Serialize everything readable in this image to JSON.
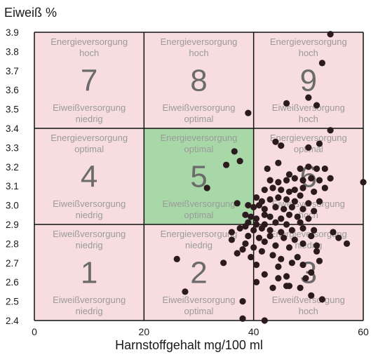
{
  "chart_data": {
    "type": "scatter",
    "ylabel": "Eiweiß %",
    "xlabel": "Harnstoffgehalt mg/100 ml",
    "xlim": [
      0,
      60
    ],
    "ylim": [
      2.4,
      3.9
    ],
    "x_ticks": [
      "0",
      "20",
      "40",
      "60"
    ],
    "y_ticks": [
      "2.4",
      "2.5",
      "2.6",
      "2.7",
      "2.8",
      "2.9",
      "3.0",
      "3.1",
      "3.2",
      "3.3",
      "3.4",
      "3.5",
      "3.6",
      "3.7",
      "3.8",
      "3.9"
    ],
    "x_bounds": [
      0,
      20,
      40,
      60
    ],
    "y_bounds": [
      2.4,
      2.9,
      3.4,
      3.9
    ],
    "colors": {
      "zone_fill": "#f7dde0",
      "optimal_fill": "#a8d8a8",
      "zone_label": "#9a9a9a",
      "zone_number": "#6b6b6b",
      "point": "#2b1a1e",
      "grid": "#111111"
    },
    "zones": [
      {
        "number": "1",
        "col": 0,
        "row": 0,
        "top1": "Eiweißversorgung",
        "top2": "niedrig",
        "bottom1": "Eiweißversorgung",
        "bottom2": "niedrig"
      },
      {
        "number": "2",
        "col": 1,
        "row": 0,
        "top1": "Energieversorgung",
        "top2": "niedrig",
        "bottom1": "Eiweißversorgung",
        "bottom2": "optimal"
      },
      {
        "number": "3",
        "col": 2,
        "row": 0,
        "top1": "Energieversorgung",
        "top2": "niedrig",
        "bottom1": "Eiweißversorgung",
        "bottom2": "hoch"
      },
      {
        "number": "4",
        "col": 0,
        "row": 1,
        "top1": "Energieversorgung",
        "top2": "optimal",
        "bottom1": "Eiweißversorgung",
        "bottom2": "niedrig"
      },
      {
        "number": "5",
        "col": 1,
        "row": 1,
        "top1": "Energieversorgung",
        "top2": "optimal",
        "bottom1": "Eiweißversorgung",
        "bottom2": "optimal",
        "highlight": true
      },
      {
        "number": "6",
        "col": 2,
        "row": 1,
        "top1": "Energieversorgung",
        "top2": "optimal",
        "bottom1": "Eiweißversorgung",
        "bottom2": "hoch"
      },
      {
        "number": "7",
        "col": 0,
        "row": 2,
        "top1": "Energieversorgung",
        "top2": "hoch",
        "bottom1": "Eiweißversorgung",
        "bottom2": "niedrig"
      },
      {
        "number": "8",
        "col": 1,
        "row": 2,
        "top1": "Energieversorgung",
        "top2": "hoch",
        "bottom1": "Eiweißversorgung",
        "bottom2": "optimal"
      },
      {
        "number": "9",
        "col": 2,
        "row": 2,
        "top1": "Energieversorgung",
        "top2": "hoch",
        "bottom1": "Eiweißversorgung",
        "bottom2": "hoch"
      }
    ],
    "points": [
      [
        54,
        3.89
      ],
      [
        52.5,
        3.74
      ],
      [
        51.5,
        3.52
      ],
      [
        50,
        3.56
      ],
      [
        46,
        3.53
      ],
      [
        39,
        3.48
      ],
      [
        54,
        3.39
      ],
      [
        37.5,
        3.23
      ],
      [
        36.5,
        3.28
      ],
      [
        35,
        3.21
      ],
      [
        31.5,
        3.09
      ],
      [
        37,
        3.01
      ],
      [
        44,
        3.33
      ],
      [
        45,
        3.31
      ],
      [
        50,
        3.3
      ],
      [
        52,
        3.32
      ],
      [
        42.5,
        3.19
      ],
      [
        44.5,
        3.22
      ],
      [
        46.5,
        3.16
      ],
      [
        48.5,
        3.19
      ],
      [
        50,
        3.2
      ],
      [
        51.5,
        3.19
      ],
      [
        53,
        3.19
      ],
      [
        43,
        3.13
      ],
      [
        44.5,
        3.12
      ],
      [
        46,
        3.13
      ],
      [
        47.5,
        3.14
      ],
      [
        49,
        3.13
      ],
      [
        50.5,
        3.14
      ],
      [
        52,
        3.13
      ],
      [
        54,
        3.14
      ],
      [
        60,
        3.12
      ],
      [
        42,
        3.08
      ],
      [
        43.5,
        3.09
      ],
      [
        45,
        3.08
      ],
      [
        46.5,
        3.07
      ],
      [
        47.5,
        3.08
      ],
      [
        49,
        3.09
      ],
      [
        51,
        3.07
      ],
      [
        53,
        3.09
      ],
      [
        40.5,
        3.04
      ],
      [
        41.5,
        3.02
      ],
      [
        43,
        3.03
      ],
      [
        44.5,
        3.04
      ],
      [
        46,
        3.03
      ],
      [
        47.5,
        3.02
      ],
      [
        48.5,
        3.05
      ],
      [
        50,
        3.01
      ],
      [
        52,
        3.02
      ],
      [
        39,
        3.0
      ],
      [
        40,
        2.99
      ],
      [
        41,
        3.0
      ],
      [
        42,
        2.98
      ],
      [
        44,
        2.99
      ],
      [
        45.5,
        2.98
      ],
      [
        47,
        2.99
      ],
      [
        49,
        2.98
      ],
      [
        51,
        2.97
      ],
      [
        38.5,
        2.95
      ],
      [
        39.5,
        2.94
      ],
      [
        40.5,
        2.93
      ],
      [
        42,
        2.95
      ],
      [
        43,
        2.94
      ],
      [
        45,
        2.93
      ],
      [
        46.5,
        2.95
      ],
      [
        48,
        2.94
      ],
      [
        50,
        2.93
      ],
      [
        39,
        2.91
      ],
      [
        40.5,
        2.9
      ],
      [
        42,
        2.9
      ],
      [
        44,
        2.91
      ],
      [
        46,
        2.9
      ],
      [
        48.5,
        2.91
      ],
      [
        37.5,
        2.88
      ],
      [
        38.5,
        2.89
      ],
      [
        40,
        2.87
      ],
      [
        41.5,
        2.88
      ],
      [
        43,
        2.87
      ],
      [
        45,
        2.86
      ],
      [
        47,
        2.87
      ],
      [
        49,
        2.88
      ],
      [
        51,
        2.87
      ],
      [
        36,
        2.86
      ],
      [
        39,
        2.84
      ],
      [
        41,
        2.83
      ],
      [
        43,
        2.84
      ],
      [
        45.5,
        2.83
      ],
      [
        47.5,
        2.82
      ],
      [
        50.5,
        2.84
      ],
      [
        54.5,
        2.86
      ],
      [
        55.5,
        2.83
      ],
      [
        36,
        2.82
      ],
      [
        38.5,
        2.8
      ],
      [
        40,
        2.78
      ],
      [
        42,
        2.81
      ],
      [
        44,
        2.79
      ],
      [
        46.5,
        2.78
      ],
      [
        49,
        2.8
      ],
      [
        51.5,
        2.79
      ],
      [
        57,
        2.8
      ],
      [
        37,
        2.75
      ],
      [
        38,
        2.77
      ],
      [
        39.5,
        2.73
      ],
      [
        41.5,
        2.76
      ],
      [
        43.5,
        2.74
      ],
      [
        45,
        2.72
      ],
      [
        48,
        2.73
      ],
      [
        51.5,
        2.76
      ],
      [
        26,
        2.72
      ],
      [
        34.5,
        2.7
      ],
      [
        40.5,
        2.69
      ],
      [
        44.5,
        2.68
      ],
      [
        47,
        2.7
      ],
      [
        49,
        2.69
      ],
      [
        52,
        2.71
      ],
      [
        42,
        2.64
      ],
      [
        46,
        2.63
      ],
      [
        50.5,
        2.65
      ],
      [
        40.5,
        2.6
      ],
      [
        44.5,
        2.62
      ],
      [
        46.5,
        2.58
      ],
      [
        49.5,
        2.62
      ],
      [
        43.5,
        2.57
      ],
      [
        46,
        2.58
      ],
      [
        48.5,
        2.57
      ],
      [
        27.5,
        2.55
      ],
      [
        38,
        2.5
      ],
      [
        52.5,
        2.51
      ],
      [
        50.5,
        2.53
      ],
      [
        38,
        2.41
      ],
      [
        42,
        2.4
      ]
    ]
  }
}
